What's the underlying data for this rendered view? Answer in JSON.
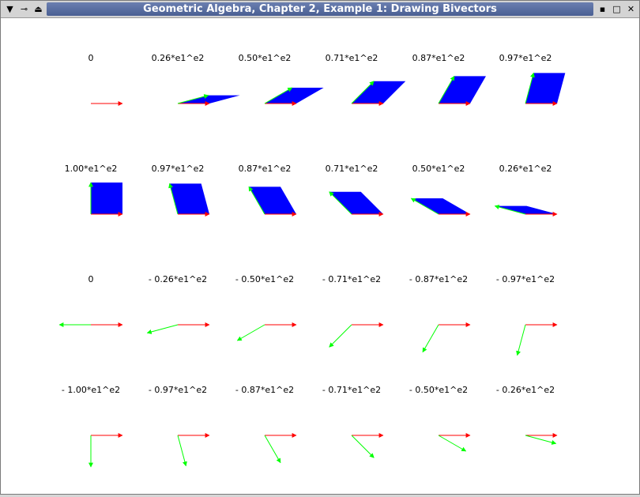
{
  "window": {
    "title": "Geometric Algebra, Chapter 2, Example 1: Drawing Bivectors",
    "left_icons": [
      "menu-icon",
      "pin-icon",
      "shade-icon"
    ],
    "right_icons": [
      "minimize-icon",
      "maximize-icon",
      "close-icon"
    ]
  },
  "colors": {
    "e1": "#ff0000",
    "e2": "#00ff00",
    "bivector": "#0000ff",
    "title_bg": "#5b6fa3"
  },
  "cells": [
    {
      "label": "0",
      "angle": 0
    },
    {
      "label": "0.26*e1^e2",
      "angle": 15
    },
    {
      "label": "0.50*e1^e2",
      "angle": 30
    },
    {
      "label": "0.71*e1^e2",
      "angle": 45
    },
    {
      "label": "0.87*e1^e2",
      "angle": 60
    },
    {
      "label": "0.97*e1^e2",
      "angle": 75
    },
    {
      "label": "1.00*e1^e2",
      "angle": 90
    },
    {
      "label": "0.97*e1^e2",
      "angle": 105
    },
    {
      "label": "0.87*e1^e2",
      "angle": 120
    },
    {
      "label": "0.71*e1^e2",
      "angle": 135
    },
    {
      "label": "0.50*e1^e2",
      "angle": 150
    },
    {
      "label": "0.26*e1^e2",
      "angle": 165
    },
    {
      "label": "0",
      "angle": 180
    },
    {
      "label": "- 0.26*e1^e2",
      "angle": 195
    },
    {
      "label": "- 0.50*e1^e2",
      "angle": 210
    },
    {
      "label": "- 0.71*e1^e2",
      "angle": 225
    },
    {
      "label": "- 0.87*e1^e2",
      "angle": 240
    },
    {
      "label": "- 0.97*e1^e2",
      "angle": 255
    },
    {
      "label": "- 1.00*e1^e2",
      "angle": 270
    },
    {
      "label": "- 0.97*e1^e2",
      "angle": 285
    },
    {
      "label": "- 0.87*e1^e2",
      "angle": 300
    },
    {
      "label": "- 0.71*e1^e2",
      "angle": 315
    },
    {
      "label": "- 0.50*e1^e2",
      "angle": 330
    },
    {
      "label": "- 0.26*e1^e2",
      "angle": 345
    }
  ]
}
